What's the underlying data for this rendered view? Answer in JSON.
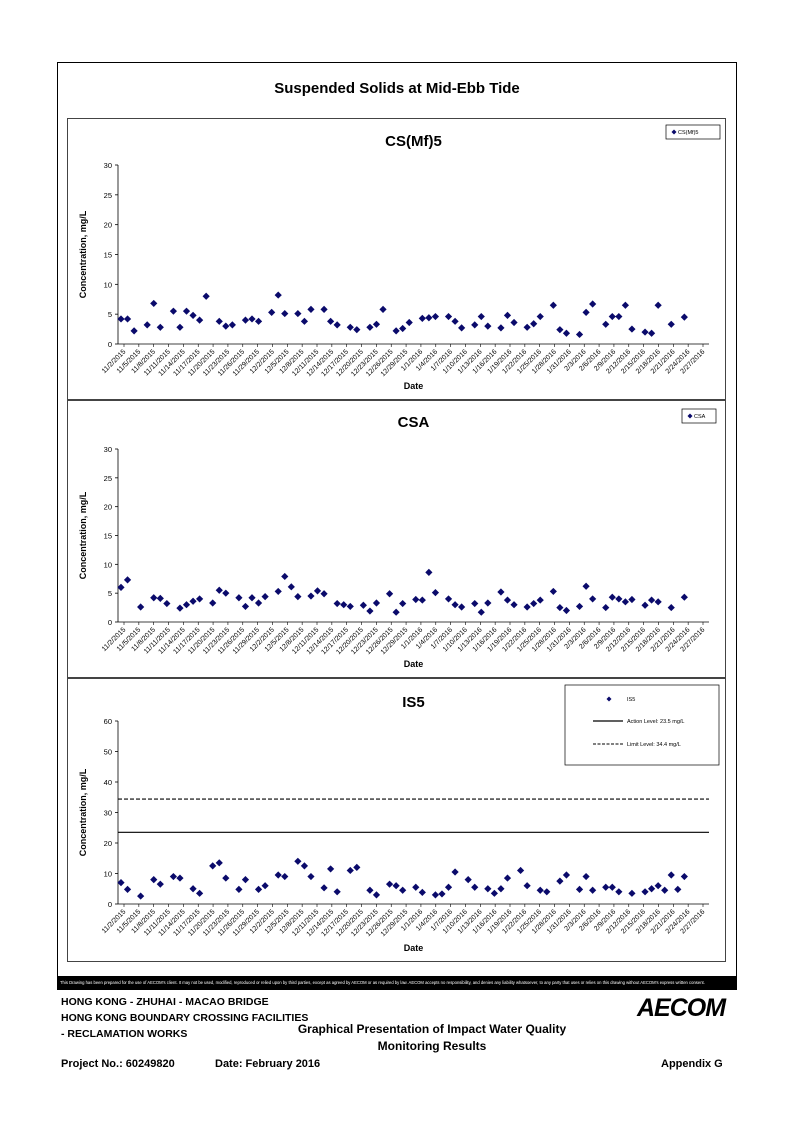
{
  "page": {
    "title": "Suspended Solids at Mid-Ebb Tide",
    "disclaimer": "This Drawing has been prepared for the use of AECOM's client. It may not be used, modified, reproduced or relied upon by third parties, except as agreed by AECOM or as required by law. AECOM accepts no responsibility, and denies any liability whatsoever, to any party that uses or relies on this drawing without AECOM's express written consent.",
    "project_line1": "HONG KONG - ZHUHAI - MACAO BRIDGE",
    "project_line2": "HONG KONG BOUNDARY CROSSING FACILITIES",
    "project_line3": "- RECLAMATION WORKS",
    "report_title_line1": "Graphical Presentation of Impact Water Quality",
    "report_title_line2": "Monitoring Results",
    "project_no": "Project No.: 60249820",
    "date": "Date: February 2016",
    "appendix": "Appendix G",
    "logo": "AECOM"
  },
  "chart_data": [
    {
      "type": "scatter",
      "title": "CS(Mf)5",
      "xlabel": "Date",
      "ylabel": "Concentration, mg/L",
      "ylim": [
        0,
        30
      ],
      "yticks": [
        0,
        5,
        10,
        15,
        20,
        25,
        30
      ],
      "xtick_labels": [
        "11/2/2015",
        "11/5/2015",
        "11/8/2015",
        "11/11/2015",
        "11/14/2015",
        "11/17/2015",
        "11/20/2015",
        "11/23/2015",
        "11/26/2015",
        "11/29/2015",
        "12/2/2015",
        "12/5/2015",
        "12/8/2015",
        "12/11/2015",
        "12/14/2015",
        "12/17/2015",
        "12/20/2015",
        "12/23/2015",
        "12/26/2015",
        "12/29/2015",
        "1/1/2016",
        "1/4/2016",
        "1/7/2016",
        "1/10/2016",
        "1/13/2016",
        "1/16/2016",
        "1/19/2016",
        "1/22/2016",
        "1/25/2016",
        "1/28/2016",
        "1/31/2016",
        "2/3/2016",
        "2/6/2016",
        "2/9/2016",
        "2/12/2016",
        "2/15/2016",
        "2/18/2016",
        "2/21/2016",
        "2/24/2016",
        "2/27/2016"
      ],
      "legend": [
        "CS(Mf)5"
      ],
      "legend_position": "top-right",
      "x": [
        0,
        1,
        2,
        4,
        5,
        6,
        8,
        9,
        10,
        11,
        12,
        13,
        15,
        16,
        17,
        19,
        20,
        21,
        23,
        24,
        25,
        27,
        28,
        29,
        31,
        32,
        33,
        35,
        36,
        38,
        39,
        40,
        42,
        43,
        44,
        46,
        47,
        48,
        50,
        51,
        52,
        54,
        55,
        56,
        58,
        59,
        60,
        62,
        63,
        64,
        66,
        67,
        68,
        70,
        71,
        72,
        74,
        75,
        76,
        77,
        78,
        80,
        81,
        82,
        84,
        86
      ],
      "y": [
        4.2,
        4.2,
        2.2,
        3.2,
        6.8,
        2.8,
        5.5,
        2.8,
        5.5,
        4.8,
        4.0,
        8.0,
        3.8,
        3.0,
        3.2,
        4.0,
        4.2,
        3.8,
        5.3,
        8.2,
        5.1,
        5.1,
        3.8,
        5.8,
        5.8,
        3.8,
        3.2,
        2.8,
        2.4,
        2.8,
        3.3,
        5.8,
        2.2,
        2.6,
        3.6,
        4.3,
        4.4,
        4.6,
        4.6,
        3.8,
        2.7,
        3.2,
        4.6,
        3.0,
        2.7,
        4.8,
        3.6,
        2.8,
        3.4,
        4.6,
        6.5,
        2.4,
        1.8,
        1.6,
        5.3,
        6.7,
        3.3,
        4.6,
        4.6,
        6.5,
        2.5,
        2.0,
        1.8,
        6.5,
        3.3,
        4.5
      ]
    },
    {
      "type": "scatter",
      "title": "CSA",
      "xlabel": "Date",
      "ylabel": "Concentration, mg/L",
      "ylim": [
        0,
        30
      ],
      "yticks": [
        0,
        5,
        10,
        15,
        20,
        25,
        30
      ],
      "xtick_labels": [
        "11/2/2015",
        "11/5/2015",
        "11/8/2015",
        "11/11/2015",
        "11/14/2015",
        "11/17/2015",
        "11/20/2015",
        "11/23/2015",
        "11/26/2015",
        "11/29/2015",
        "12/2/2015",
        "12/5/2015",
        "12/8/2015",
        "12/11/2015",
        "12/14/2015",
        "12/17/2015",
        "12/20/2015",
        "12/23/2015",
        "12/26/2015",
        "12/29/2015",
        "1/1/2016",
        "1/4/2016",
        "1/7/2016",
        "1/10/2016",
        "1/13/2016",
        "1/16/2016",
        "1/19/2016",
        "1/22/2016",
        "1/25/2016",
        "1/28/2016",
        "1/31/2016",
        "2/3/2016",
        "2/6/2016",
        "2/9/2016",
        "2/12/2016",
        "2/15/2016",
        "2/18/2016",
        "2/21/2016",
        "2/24/2016",
        "2/27/2016"
      ],
      "legend": [
        "CSA"
      ],
      "legend_position": "top-right",
      "x": [
        0,
        1,
        3,
        5,
        6,
        7,
        9,
        10,
        11,
        12,
        14,
        15,
        16,
        18,
        19,
        20,
        21,
        22,
        24,
        25,
        26,
        27,
        29,
        30,
        31,
        33,
        34,
        35,
        37,
        38,
        39,
        41,
        42,
        43,
        45,
        46,
        47,
        48,
        50,
        51,
        52,
        54,
        55,
        56,
        58,
        59,
        60,
        62,
        63,
        64,
        66,
        67,
        68,
        70,
        71,
        72,
        74,
        75,
        76,
        77,
        78,
        80,
        81,
        82,
        84,
        86
      ],
      "y": [
        6.0,
        7.3,
        2.6,
        4.2,
        4.1,
        3.2,
        2.4,
        3.0,
        3.6,
        4.0,
        3.3,
        5.5,
        5.0,
        4.2,
        2.7,
        4.2,
        3.3,
        4.4,
        5.3,
        7.9,
        6.1,
        4.4,
        4.5,
        5.4,
        4.9,
        3.2,
        3.0,
        2.7,
        2.9,
        1.9,
        3.3,
        4.9,
        1.7,
        3.2,
        3.9,
        3.8,
        8.6,
        5.1,
        4.0,
        3.0,
        2.6,
        3.2,
        1.7,
        3.3,
        5.2,
        3.8,
        3.0,
        2.6,
        3.2,
        3.8,
        5.3,
        2.5,
        2.0,
        2.7,
        6.2,
        4.0,
        2.5,
        4.3,
        4.0,
        3.5,
        3.9,
        2.9,
        3.8,
        3.5,
        2.5,
        4.3
      ]
    },
    {
      "type": "scatter",
      "title": "IS5",
      "xlabel": "Date",
      "ylabel": "Concentration, mg/L",
      "ylim": [
        0,
        60
      ],
      "yticks": [
        0,
        10,
        20,
        30,
        40,
        50,
        60
      ],
      "xtick_labels": [
        "11/2/2015",
        "11/5/2015",
        "11/8/2015",
        "11/11/2015",
        "11/14/2015",
        "11/17/2015",
        "11/20/2015",
        "11/23/2015",
        "11/26/2015",
        "11/29/2015",
        "12/2/2015",
        "12/5/2015",
        "12/8/2015",
        "12/11/2015",
        "12/14/2015",
        "12/17/2015",
        "12/20/2015",
        "12/23/2015",
        "12/26/2015",
        "12/29/2015",
        "1/1/2016",
        "1/4/2016",
        "1/7/2016",
        "1/10/2016",
        "1/13/2016",
        "1/16/2016",
        "1/19/2016",
        "1/22/2016",
        "1/25/2016",
        "1/28/2016",
        "1/31/2016",
        "2/3/2016",
        "2/6/2016",
        "2/9/2016",
        "2/12/2016",
        "2/15/2016",
        "2/18/2016",
        "2/21/2016",
        "2/24/2016",
        "2/27/2016"
      ],
      "legend": [
        "IS5",
        "Action Level: 23.5 mg/L",
        "Limit Level: 34.4 mg/L"
      ],
      "legend_position": "top-right",
      "action_level": 23.5,
      "limit_level": 34.4,
      "x": [
        0,
        1,
        3,
        5,
        6,
        8,
        9,
        11,
        12,
        14,
        15,
        16,
        18,
        19,
        21,
        22,
        24,
        25,
        27,
        28,
        29,
        31,
        32,
        33,
        35,
        36,
        38,
        39,
        41,
        42,
        43,
        45,
        46,
        48,
        49,
        50,
        51,
        53,
        54,
        56,
        57,
        58,
        59,
        61,
        62,
        64,
        65,
        67,
        68,
        70,
        71,
        72,
        74,
        75,
        76,
        78,
        80,
        81,
        82,
        83,
        84,
        85,
        86
      ],
      "y": [
        7.0,
        4.8,
        2.6,
        8.0,
        6.5,
        9.0,
        8.5,
        5.0,
        3.5,
        12.5,
        13.5,
        8.5,
        4.8,
        8.0,
        4.8,
        6.0,
        9.5,
        9.0,
        14.0,
        12.5,
        9.0,
        5.3,
        11.5,
        4.0,
        11.0,
        12.0,
        4.5,
        3.0,
        6.5,
        6.0,
        4.5,
        5.5,
        3.8,
        3.0,
        3.3,
        5.5,
        10.5,
        8.0,
        5.5,
        5.0,
        3.5,
        5.0,
        8.5,
        11.0,
        6.0,
        4.5,
        4.0,
        7.5,
        9.5,
        4.8,
        9.0,
        4.5,
        5.5,
        5.5,
        4.0,
        3.5,
        4.0,
        5.0,
        6.0,
        4.5,
        9.5,
        4.8,
        9.0
      ]
    }
  ]
}
